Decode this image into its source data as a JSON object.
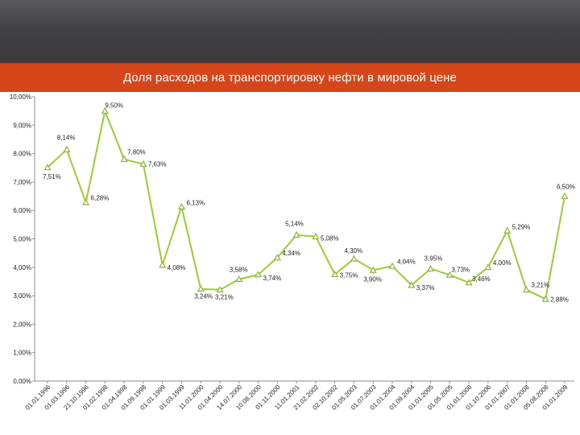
{
  "colors": {
    "line": "#9acd32",
    "marker": "#8db43a",
    "title_bar": "#d6461b",
    "grid": "#d9d9d9"
  },
  "chart_data": {
    "type": "line",
    "title": "Доля расходов на транспортировку нефти в мировой цене",
    "xlabel": "",
    "ylabel": "",
    "ylim": [
      0,
      10
    ],
    "yticks": [
      "0,00%",
      "1,00%",
      "2,00%",
      "3,00%",
      "4,00%",
      "5,00%",
      "6,00%",
      "7,00%",
      "8,00%",
      "9,00%",
      "10,00%"
    ],
    "grid": false,
    "legend": "none",
    "categories": [
      "01.01.1996",
      "01.03.1996",
      "21.10.1996",
      "01.02.1998",
      "01.04.1998",
      "01.09.1998",
      "01.01.1999",
      "01.03.1999",
      "11.01.2000",
      "01.04.2000",
      "14.07.2000",
      "10.08.2000",
      "01.11.2000",
      "11.01.2001",
      "21.02.2002",
      "02.10.2002",
      "01.05.2003",
      "01.07.2003",
      "01.01.2004",
      "01.09.2004",
      "01.01.2005",
      "01.05.2005",
      "01.01.2006",
      "01.10.2006",
      "01.01.2007",
      "01.01.2008",
      "05.08.2008",
      "01.01.2009"
    ],
    "series": [
      {
        "values": [
          7.51,
          8.14,
          6.28,
          9.5,
          7.8,
          7.63,
          4.08,
          6.13,
          3.24,
          3.21,
          3.58,
          3.74,
          4.34,
          5.14,
          5.08,
          3.75,
          4.3,
          3.9,
          4.04,
          3.37,
          3.95,
          3.73,
          3.46,
          4.0,
          5.29,
          3.21,
          2.88,
          6.5
        ],
        "labels": [
          "7,51%",
          "8,14%",
          "6,28%",
          "9,50%",
          "7,80%",
          "7,63%",
          "4,08%",
          "6,13%",
          "3,24%",
          "3,21%",
          "3,58%",
          "3,74%",
          "4,34%",
          "5,14%",
          "5,08%",
          "3,75%",
          "4,30%",
          "3,90%",
          "4,04%",
          "3,37%",
          "3,95%",
          "3,73%",
          "3,46%",
          "4,00%",
          "5,29%",
          "3,21%",
          "2,88%",
          "6,50%"
        ]
      }
    ]
  }
}
